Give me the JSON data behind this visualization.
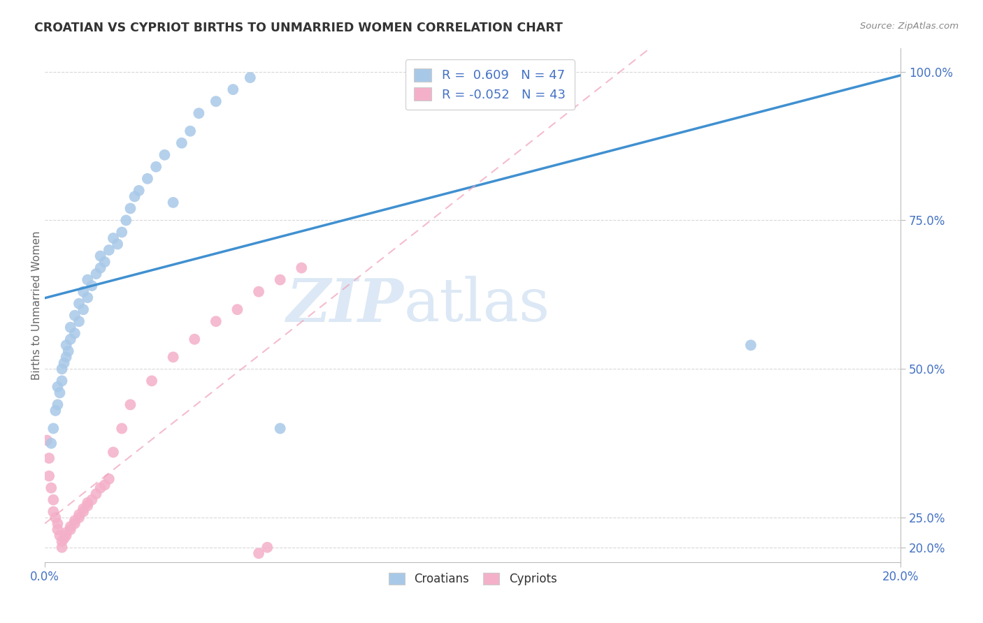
{
  "title": "CROATIAN VS CYPRIOT BIRTHS TO UNMARRIED WOMEN CORRELATION CHART",
  "source": "Source: ZipAtlas.com",
  "ylabel": "Births to Unmarried Women",
  "ylabel_right_ticks": [
    "20.0%",
    "25.0%",
    "50.0%",
    "75.0%",
    "100.0%"
  ],
  "ylabel_right_vals": [
    0.2,
    0.25,
    0.5,
    0.75,
    1.0
  ],
  "xlim": [
    0.0,
    0.2
  ],
  "ylim": [
    0.175,
    1.04
  ],
  "croatian_R": 0.609,
  "croatian_N": 47,
  "cypriot_R": -0.052,
  "cypriot_N": 43,
  "croatian_color": "#a8c8e8",
  "cypriot_color": "#f4b0c8",
  "croatian_line_color": "#4090d0",
  "cypriot_line_color": "#f0a0b8",
  "background_color": "#ffffff",
  "grid_color": "#d8d8d8",
  "title_color": "#333333",
  "watermark_zip": "ZIP",
  "watermark_atlas": "atlas",
  "watermark_color": "#dce8f5",
  "legend_label_1": "R =  0.609   N = 47",
  "legend_label_2": "R = -0.052   N = 43",
  "croatian_x": [
    0.0015,
    0.002,
    0.0025,
    0.003,
    0.003,
    0.0035,
    0.004,
    0.004,
    0.0045,
    0.005,
    0.005,
    0.0055,
    0.006,
    0.006,
    0.007,
    0.007,
    0.008,
    0.008,
    0.009,
    0.009,
    0.01,
    0.01,
    0.011,
    0.012,
    0.013,
    0.013,
    0.014,
    0.015,
    0.016,
    0.017,
    0.018,
    0.019,
    0.02,
    0.021,
    0.022,
    0.024,
    0.026,
    0.028,
    0.03,
    0.032,
    0.034,
    0.036,
    0.04,
    0.044,
    0.048,
    0.055,
    0.165
  ],
  "croatian_y": [
    0.375,
    0.4,
    0.43,
    0.44,
    0.47,
    0.46,
    0.48,
    0.5,
    0.51,
    0.52,
    0.54,
    0.53,
    0.55,
    0.57,
    0.56,
    0.59,
    0.58,
    0.61,
    0.6,
    0.63,
    0.62,
    0.65,
    0.64,
    0.66,
    0.67,
    0.69,
    0.68,
    0.7,
    0.72,
    0.71,
    0.73,
    0.75,
    0.77,
    0.79,
    0.8,
    0.82,
    0.84,
    0.86,
    0.78,
    0.88,
    0.9,
    0.93,
    0.95,
    0.97,
    0.99,
    0.4,
    0.54
  ],
  "cypriot_x": [
    0.0005,
    0.001,
    0.001,
    0.0015,
    0.002,
    0.002,
    0.0025,
    0.003,
    0.003,
    0.0035,
    0.004,
    0.004,
    0.0045,
    0.005,
    0.005,
    0.006,
    0.006,
    0.007,
    0.007,
    0.008,
    0.008,
    0.009,
    0.009,
    0.01,
    0.01,
    0.011,
    0.012,
    0.013,
    0.014,
    0.015,
    0.016,
    0.018,
    0.02,
    0.025,
    0.03,
    0.035,
    0.04,
    0.045,
    0.05,
    0.05,
    0.052,
    0.055,
    0.06
  ],
  "cypriot_y": [
    0.38,
    0.35,
    0.32,
    0.3,
    0.28,
    0.26,
    0.25,
    0.24,
    0.23,
    0.22,
    0.21,
    0.2,
    0.215,
    0.22,
    0.225,
    0.23,
    0.235,
    0.24,
    0.245,
    0.25,
    0.255,
    0.26,
    0.265,
    0.27,
    0.275,
    0.28,
    0.29,
    0.3,
    0.305,
    0.315,
    0.36,
    0.4,
    0.44,
    0.48,
    0.52,
    0.55,
    0.58,
    0.6,
    0.63,
    0.19,
    0.2,
    0.65,
    0.67
  ]
}
